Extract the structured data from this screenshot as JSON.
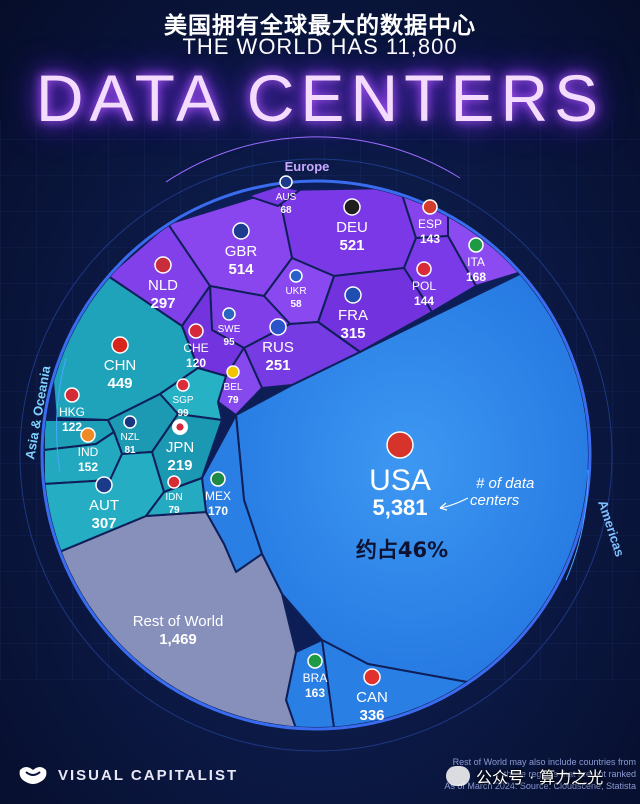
{
  "header": {
    "title_cn": "美国拥有全球最大的数据中心",
    "subtitle": "THE WORLD HAS 11,800",
    "title": "DATA CENTERS"
  },
  "chart_data": {
    "type": "voronoi-treemap",
    "regions": [
      {
        "name": "Europe",
        "color": "#7b38e6"
      },
      {
        "name": "Asia & Oceania",
        "color": "#21a7bd"
      },
      {
        "name": "Americas",
        "color": "#2f86ea"
      },
      {
        "name": "Rest of World",
        "color": "#8a93bd"
      }
    ],
    "cells": [
      {
        "code": "USA",
        "region": "Americas",
        "value": "5,381"
      },
      {
        "code": "CAN",
        "region": "Americas",
        "value": "336"
      },
      {
        "code": "BRA",
        "region": "Americas",
        "value": "163"
      },
      {
        "code": "MEX",
        "region": "Americas",
        "value": "170"
      },
      {
        "code": "DEU",
        "region": "Europe",
        "value": "521"
      },
      {
        "code": "GBR",
        "region": "Europe",
        "value": "514"
      },
      {
        "code": "FRA",
        "region": "Europe",
        "value": "315"
      },
      {
        "code": "NLD",
        "region": "Europe",
        "value": "297"
      },
      {
        "code": "RUS",
        "region": "Europe",
        "value": "251"
      },
      {
        "code": "ITA",
        "region": "Europe",
        "value": "168"
      },
      {
        "code": "POL",
        "region": "Europe",
        "value": "144"
      },
      {
        "code": "ESP",
        "region": "Europe",
        "value": "143"
      },
      {
        "code": "CHE",
        "region": "Europe",
        "value": "120"
      },
      {
        "code": "SWE",
        "region": "Europe",
        "value": "95"
      },
      {
        "code": "BEL",
        "region": "Europe",
        "value": "79"
      },
      {
        "code": "AUS",
        "region": "Europe",
        "value": "68"
      },
      {
        "code": "UKR",
        "region": "Europe",
        "value": "58"
      },
      {
        "code": "CHN",
        "region": "Asia & Oceania",
        "value": "449"
      },
      {
        "code": "AUT",
        "region": "Asia & Oceania",
        "value": "307"
      },
      {
        "code": "JPN",
        "region": "Asia & Oceania",
        "value": "219"
      },
      {
        "code": "IND",
        "region": "Asia & Oceania",
        "value": "152"
      },
      {
        "code": "HKG",
        "region": "Asia & Oceania",
        "value": "122"
      },
      {
        "code": "SGP",
        "region": "Asia & Oceania",
        "value": "99"
      },
      {
        "code": "NZL",
        "region": "Asia & Oceania",
        "value": "81"
      },
      {
        "code": "IDN",
        "region": "Asia & Oceania",
        "value": "79"
      },
      {
        "code": "Rest of World",
        "region": "Rest of World",
        "value": "1,469"
      }
    ],
    "usa_share": "约占46%",
    "annotation": "# of data centers"
  },
  "footer": {
    "brand": "VISUAL CAPITALIST",
    "note_lines": [
      "Rest of World may also include countries from",
      "these regions that are not ranked",
      "As of March 2024. Source: Cloudscene, Statista"
    ],
    "watermark": "公众号 · 算力之光"
  }
}
